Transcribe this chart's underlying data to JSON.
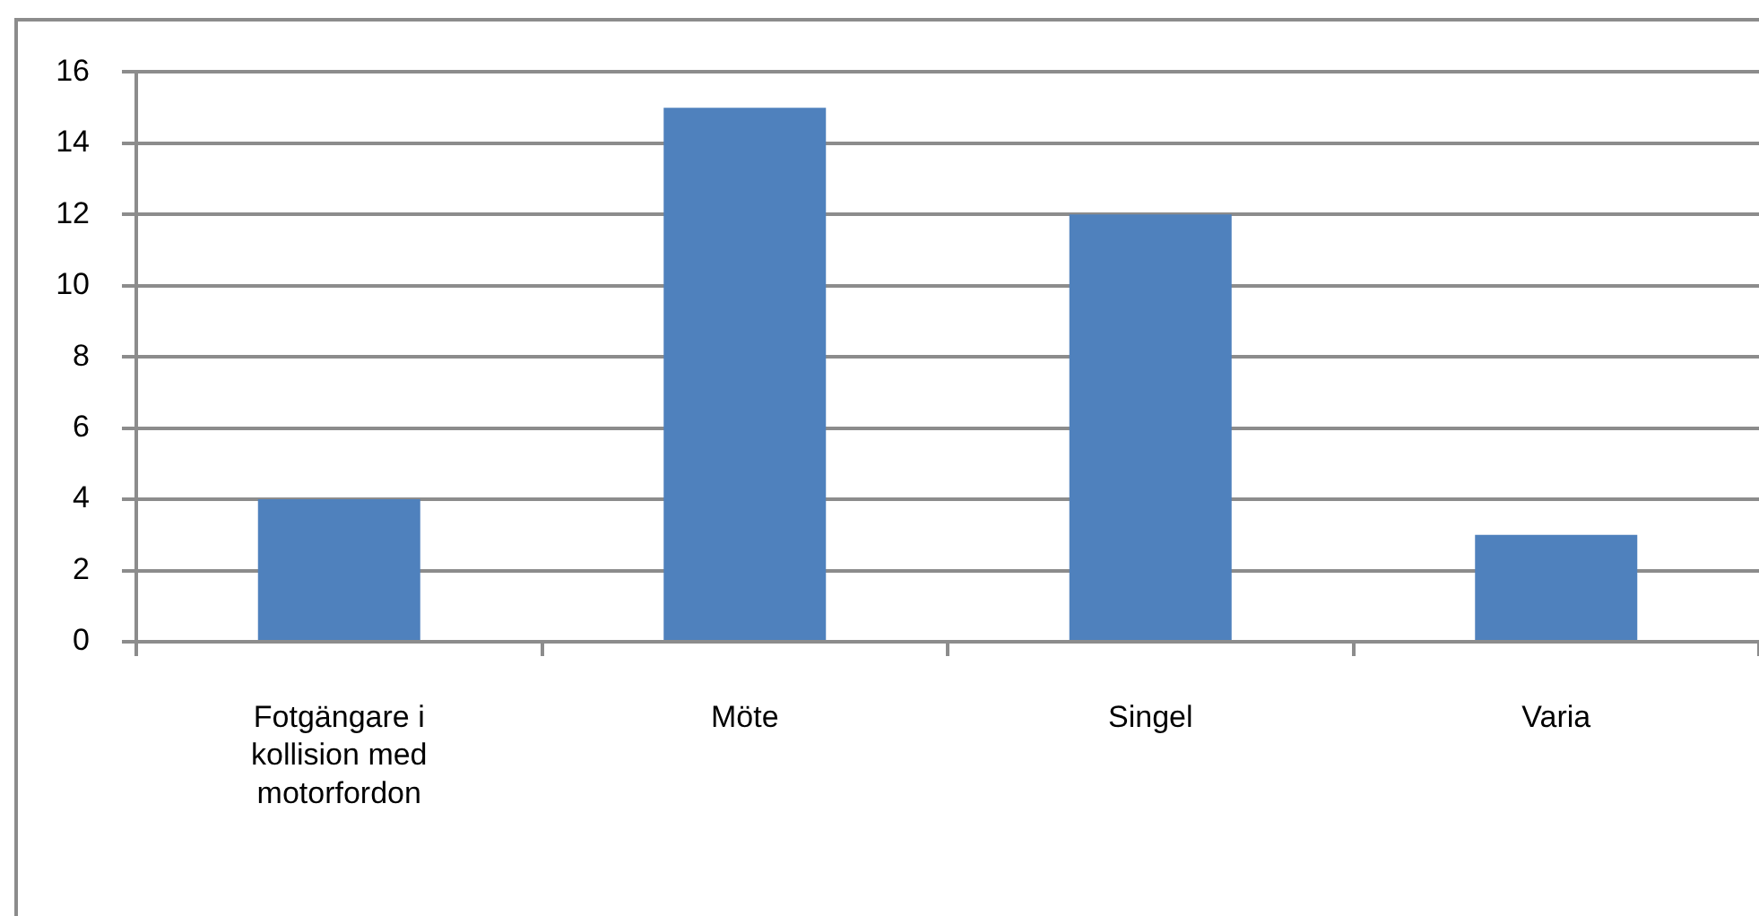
{
  "chart_data": {
    "type": "bar",
    "categories": [
      "Fotgängare i kollision med motorfordon",
      "Möte",
      "Singel",
      "Varia"
    ],
    "values": [
      4,
      15,
      12,
      3
    ],
    "color": "#4f81bd",
    "ylim": [
      0,
      16
    ],
    "yticks": [
      0,
      2,
      4,
      6,
      8,
      10,
      12,
      14,
      16
    ],
    "grid": "y"
  }
}
